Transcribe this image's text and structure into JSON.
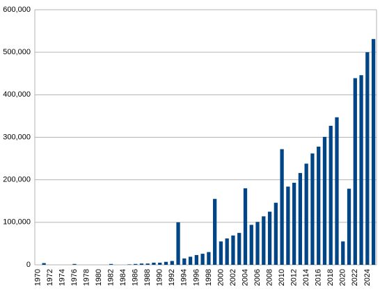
{
  "chart_data": {
    "type": "bar",
    "categories": [
      "1970",
      null,
      "1972",
      null,
      "1974",
      null,
      "1976",
      null,
      "1978",
      null,
      "1980",
      null,
      "1982",
      null,
      "1984",
      null,
      "1986",
      null,
      "1988",
      null,
      "1990",
      null,
      "1992",
      null,
      "1994",
      null,
      "1996",
      null,
      "1998",
      null,
      "2000",
      null,
      "2002",
      null,
      "2004",
      null,
      "2006",
      null,
      "2008",
      null,
      "2010",
      null,
      "2012",
      null,
      "2014",
      null,
      "2016",
      null,
      "2018",
      null,
      "2020",
      null,
      "2022",
      null,
      "2024",
      null
    ],
    "values": [
      0,
      4000,
      0,
      0,
      0,
      0,
      2000,
      0,
      0,
      0,
      0,
      0,
      2000,
      0,
      0,
      1000,
      2000,
      3000,
      3000,
      5000,
      5000,
      7000,
      9000,
      100000,
      15000,
      19000,
      23000,
      26000,
      30000,
      155000,
      55000,
      62000,
      69000,
      75000,
      180000,
      94000,
      101000,
      114000,
      125000,
      146000,
      272000,
      184000,
      193000,
      216000,
      238000,
      262000,
      278000,
      301000,
      327000,
      347000,
      55000,
      179000,
      439000,
      446000,
      500000,
      531000
    ],
    "color": "#004586",
    "ylim": [
      0,
      600000
    ],
    "yticks": [
      {
        "value": 0,
        "label": "0"
      },
      {
        "value": 100000,
        "label": "100,000"
      },
      {
        "value": 200000,
        "label": "200,000"
      },
      {
        "value": 300000,
        "label": "300,000"
      },
      {
        "value": 400000,
        "label": "400,000"
      },
      {
        "value": 500000,
        "label": "500,000"
      },
      {
        "value": 600000,
        "label": "600,000"
      }
    ],
    "grid": true
  }
}
